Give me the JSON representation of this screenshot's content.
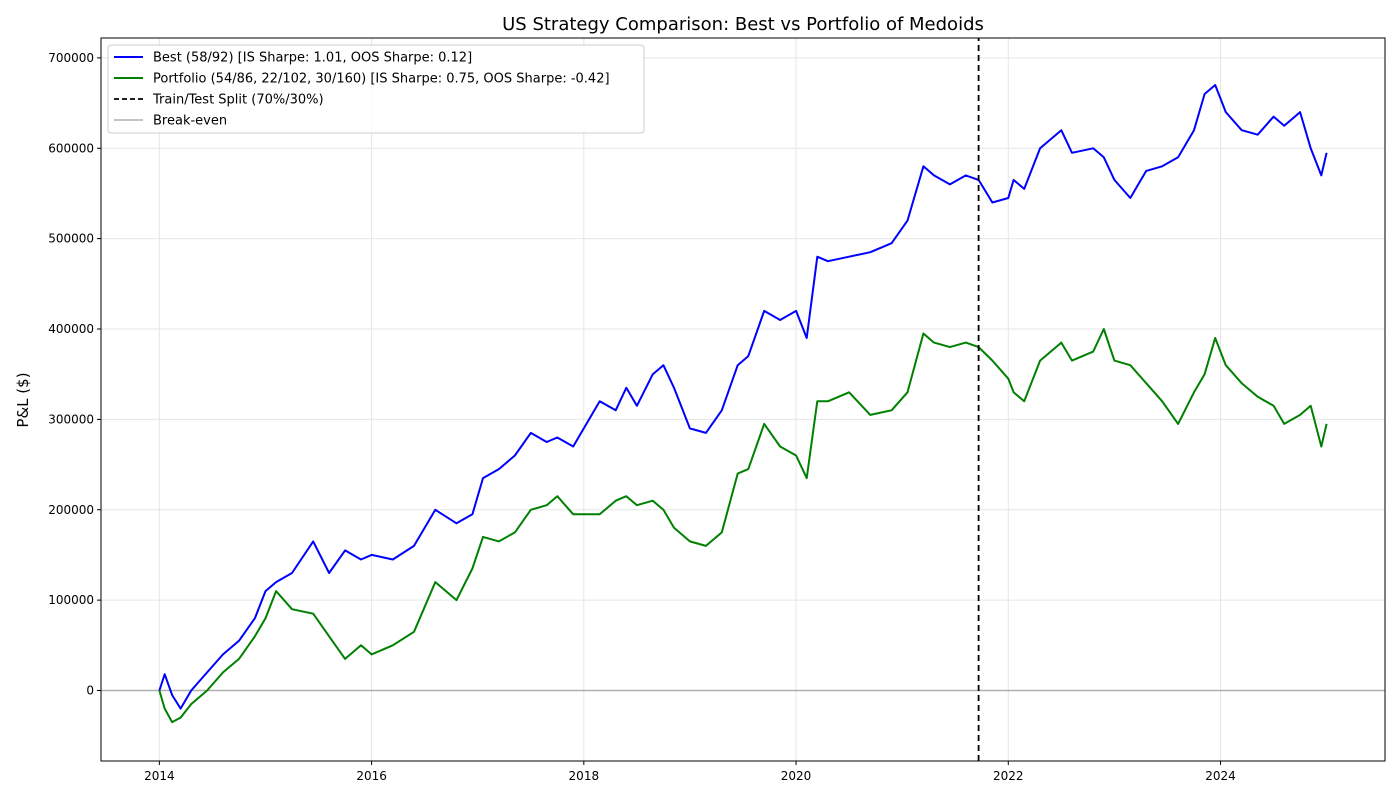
{
  "chart_data": {
    "type": "line",
    "title": "US Strategy Comparison: Best vs Portfolio of Medoids",
    "xlabel": "",
    "ylabel": "P&L ($)",
    "xlim": [
      2013.45,
      2025.55
    ],
    "ylim": [
      -78000,
      722000
    ],
    "x_ticks": [
      2014,
      2016,
      2018,
      2020,
      2022,
      2024
    ],
    "x_tick_labels": [
      "2014",
      "2016",
      "2018",
      "2020",
      "2022",
      "2024"
    ],
    "y_ticks": [
      0,
      100000,
      200000,
      300000,
      400000,
      500000,
      600000,
      700000
    ],
    "y_tick_labels": [
      "0",
      "100000",
      "200000",
      "300000",
      "400000",
      "500000",
      "600000",
      "700000"
    ],
    "grid": true,
    "legend_position": "top-left",
    "series": [
      {
        "name": "Best (58/92) [IS Sharpe: 1.01, OOS Sharpe: 0.12]",
        "color": "#0000ff",
        "x": [
          2014.0,
          2014.05,
          2014.12,
          2014.2,
          2014.3,
          2014.45,
          2014.6,
          2014.75,
          2014.9,
          2015.0,
          2015.1,
          2015.25,
          2015.45,
          2015.6,
          2015.75,
          2015.9,
          2016.0,
          2016.2,
          2016.4,
          2016.6,
          2016.8,
          2016.95,
          2017.05,
          2017.2,
          2017.35,
          2017.5,
          2017.65,
          2017.75,
          2017.9,
          2018.0,
          2018.15,
          2018.3,
          2018.4,
          2018.5,
          2018.65,
          2018.75,
          2018.85,
          2019.0,
          2019.15,
          2019.3,
          2019.45,
          2019.55,
          2019.7,
          2019.85,
          2020.0,
          2020.1,
          2020.2,
          2020.3,
          2020.5,
          2020.7,
          2020.9,
          2021.05,
          2021.2,
          2021.3,
          2021.45,
          2021.6,
          2021.72,
          2021.85,
          2022.0,
          2022.05,
          2022.15,
          2022.3,
          2022.5,
          2022.6,
          2022.8,
          2022.9,
          2023.0,
          2023.15,
          2023.3,
          2023.45,
          2023.6,
          2023.75,
          2023.85,
          2023.95,
          2024.05,
          2024.2,
          2024.35,
          2024.5,
          2024.6,
          2024.75,
          2024.85,
          2024.95,
          2025.0
        ],
        "y": [
          0,
          18000,
          -5000,
          -20000,
          0,
          20000,
          40000,
          55000,
          80000,
          110000,
          120000,
          130000,
          165000,
          130000,
          155000,
          145000,
          150000,
          145000,
          160000,
          200000,
          185000,
          195000,
          235000,
          245000,
          260000,
          285000,
          275000,
          280000,
          270000,
          290000,
          320000,
          310000,
          335000,
          315000,
          350000,
          360000,
          335000,
          290000,
          285000,
          310000,
          360000,
          370000,
          420000,
          410000,
          420000,
          390000,
          480000,
          475000,
          480000,
          485000,
          495000,
          520000,
          580000,
          570000,
          560000,
          570000,
          565000,
          540000,
          545000,
          565000,
          555000,
          600000,
          620000,
          595000,
          600000,
          590000,
          565000,
          545000,
          575000,
          580000,
          590000,
          620000,
          660000,
          670000,
          640000,
          620000,
          615000,
          635000,
          625000,
          640000,
          600000,
          570000,
          595000
        ]
      },
      {
        "name": "Portfolio (54/86, 22/102, 30/160) [IS Sharpe: 0.75, OOS Sharpe: -0.42]",
        "color": "#008000",
        "x": [
          2014.0,
          2014.05,
          2014.12,
          2014.2,
          2014.3,
          2014.45,
          2014.6,
          2014.75,
          2014.9,
          2015.0,
          2015.1,
          2015.25,
          2015.45,
          2015.6,
          2015.75,
          2015.9,
          2016.0,
          2016.2,
          2016.4,
          2016.6,
          2016.8,
          2016.95,
          2017.05,
          2017.2,
          2017.35,
          2017.5,
          2017.65,
          2017.75,
          2017.9,
          2018.0,
          2018.15,
          2018.3,
          2018.4,
          2018.5,
          2018.65,
          2018.75,
          2018.85,
          2019.0,
          2019.15,
          2019.3,
          2019.45,
          2019.55,
          2019.7,
          2019.85,
          2020.0,
          2020.1,
          2020.2,
          2020.3,
          2020.5,
          2020.7,
          2020.9,
          2021.05,
          2021.2,
          2021.3,
          2021.45,
          2021.6,
          2021.72,
          2021.85,
          2022.0,
          2022.05,
          2022.15,
          2022.3,
          2022.5,
          2022.6,
          2022.8,
          2022.9,
          2023.0,
          2023.15,
          2023.3,
          2023.45,
          2023.6,
          2023.75,
          2023.85,
          2023.95,
          2024.05,
          2024.2,
          2024.35,
          2024.5,
          2024.6,
          2024.75,
          2024.85,
          2024.95,
          2025.0
        ],
        "y": [
          0,
          -20000,
          -35000,
          -30000,
          -15000,
          0,
          20000,
          35000,
          60000,
          80000,
          110000,
          90000,
          85000,
          60000,
          35000,
          50000,
          40000,
          50000,
          65000,
          120000,
          100000,
          135000,
          170000,
          165000,
          175000,
          200000,
          205000,
          215000,
          195000,
          195000,
          195000,
          210000,
          215000,
          205000,
          210000,
          200000,
          180000,
          165000,
          160000,
          175000,
          240000,
          245000,
          295000,
          270000,
          260000,
          235000,
          320000,
          320000,
          330000,
          305000,
          310000,
          330000,
          395000,
          385000,
          380000,
          385000,
          380000,
          365000,
          345000,
          330000,
          320000,
          365000,
          385000,
          365000,
          375000,
          400000,
          365000,
          360000,
          340000,
          320000,
          295000,
          330000,
          350000,
          390000,
          360000,
          340000,
          325000,
          315000,
          295000,
          305000,
          315000,
          270000,
          295000
        ]
      },
      {
        "name": "Train/Test Split (70%/30%)",
        "color": "#000000",
        "x": [
          2021.72,
          2021.72
        ],
        "y": [
          -78000,
          722000
        ]
      },
      {
        "name": "Break-even",
        "color": "#b0b0b0",
        "x": [
          2013.45,
          2025.55
        ],
        "y": [
          0,
          0
        ]
      }
    ]
  }
}
